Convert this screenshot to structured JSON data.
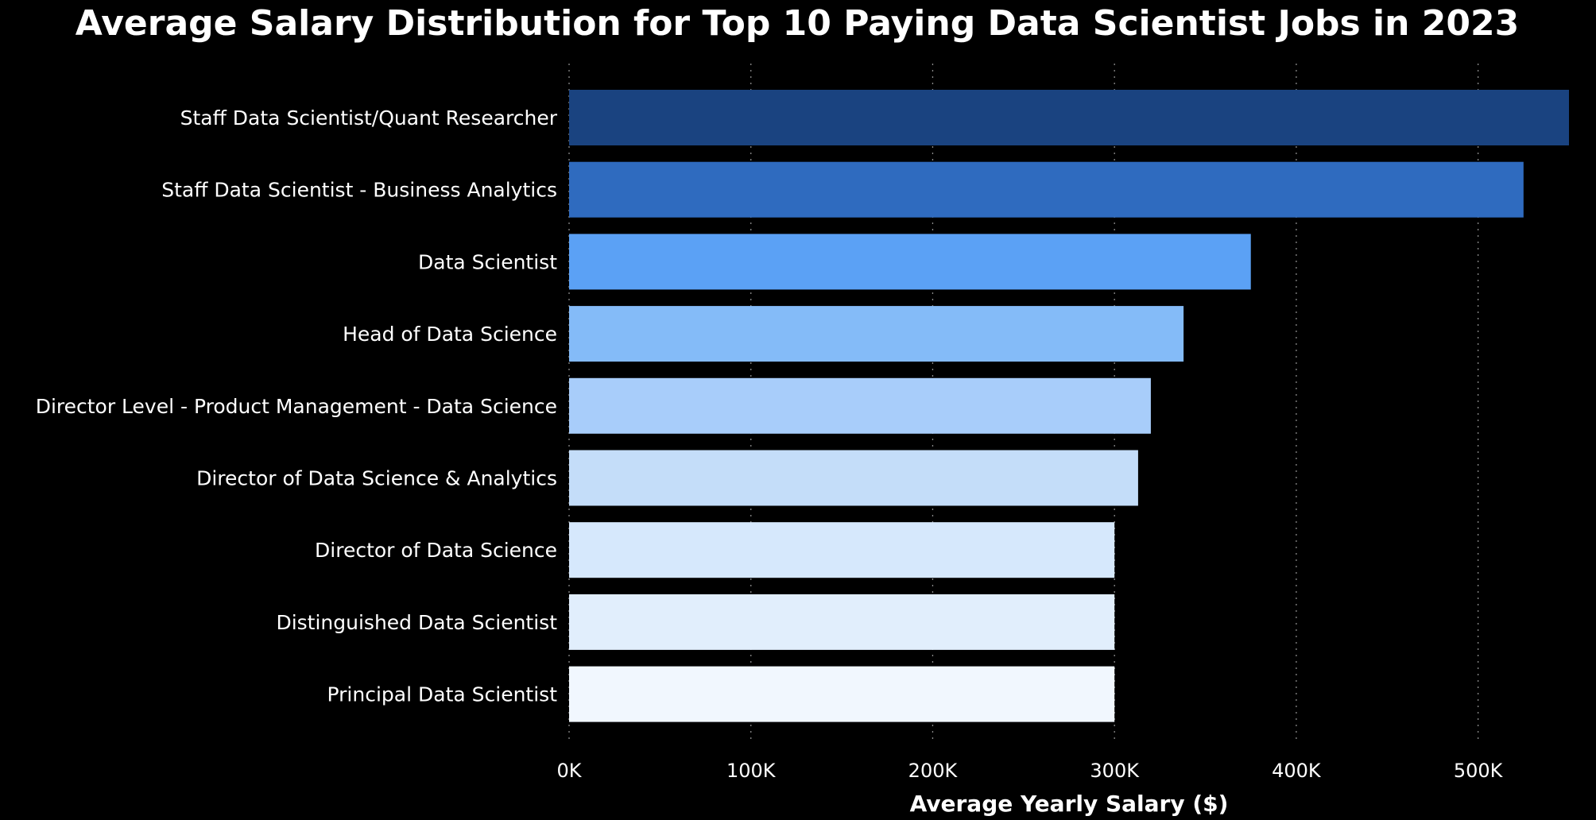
{
  "chart_data": {
    "type": "bar",
    "orientation": "horizontal",
    "title": "Average Salary Distribution for Top 10 Paying Data Scientist Jobs in 2023",
    "xlabel": "Average Yearly Salary ($)",
    "ylabel": "",
    "categories": [
      "Staff Data Scientist/Quant Researcher",
      "Staff Data Scientist - Business Analytics",
      "Data Scientist",
      "Head of Data Science",
      "Director Level - Product Management - Data Science",
      "Director of Data Science & Analytics",
      "Director of Data Science",
      "Distinguished Data Scientist",
      "Principal Data Scientist"
    ],
    "values": [
      550000,
      525000,
      375000,
      338000,
      320000,
      313000,
      300000,
      300000,
      300000
    ],
    "colors": [
      "#1a4380",
      "#2f6bbf",
      "#5ba1f5",
      "#84bbf8",
      "#a8cdfa",
      "#c4ddf9",
      "#d6e8fc",
      "#e1eefc",
      "#f1f7fe"
    ],
    "xlim": [
      0,
      550000
    ],
    "xticks": [
      0,
      100000,
      200000,
      300000,
      400000,
      500000
    ],
    "xtick_labels": [
      "0K",
      "100K",
      "200K",
      "300K",
      "400K",
      "500K"
    ],
    "grid": "vertical dotted",
    "background": "#000000"
  }
}
